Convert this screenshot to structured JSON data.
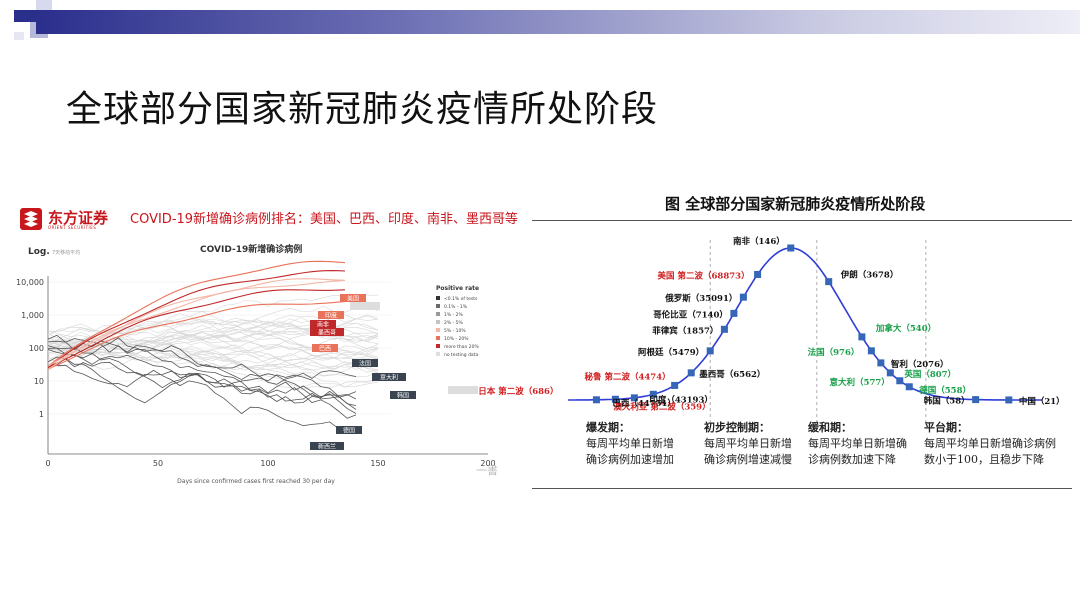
{
  "slide": {
    "title": "全球部分国家新冠肺炎疫情所处阶段"
  },
  "left_panel": {
    "logo_cn": "东方证券",
    "logo_en": "ORIENT SECURITIES",
    "headline": "COVID-19新增确诊病例排名：美国、巴西、印度、南非、墨西哥等",
    "watermark": "一書"
  },
  "chart_data": [
    {
      "type": "line",
      "title": "COVID-19新增确诊病例",
      "y_scale": "log",
      "ylabel": "Log.",
      "ylabel_note": "7天移动平均",
      "y_ticks": [
        "10,000",
        "1,000",
        "100",
        "10",
        "1"
      ],
      "xlabel": "Days since confirmed cases first reached 30 per day",
      "x_ticks": [
        "0",
        "50",
        "100",
        "150",
        "200"
      ],
      "xlim": [
        0,
        200
      ],
      "legend_title": "Positive rate",
      "legend": [
        "<0.1% of tests",
        "0.1% - 1%",
        "1% - 2%",
        "2% - 5%",
        "5% - 10%",
        "10% - 20%",
        "more than 20%",
        "no testing data"
      ],
      "legend_colors": [
        "#333333",
        "#6b6b6b",
        "#9a9a9a",
        "#c4c4c4",
        "#f4b6a6",
        "#e8735a",
        "#c0282a",
        "#dddddd"
      ],
      "country_labels": [
        {
          "text": "美国",
          "color": "#e8735a"
        },
        {
          "text": "",
          "color": "#dddddd"
        },
        {
          "text": "印度",
          "color": "#e8735a"
        },
        {
          "text": "南非",
          "color": "#c0282a"
        },
        {
          "text": "墨西哥",
          "color": "#c0282a"
        },
        {
          "text": "巴西",
          "color": "#e8735a"
        },
        {
          "text": "法国",
          "color": "#3a4450"
        },
        {
          "text": "意大利",
          "color": "#3a4450"
        },
        {
          "text": "韩国",
          "color": "#3a4450"
        },
        {
          "text": "",
          "color": "#dddddd"
        },
        {
          "text": "德国",
          "color": "#3a4450"
        },
        {
          "text": "新西兰",
          "color": "#3a4450"
        }
      ]
    },
    {
      "type": "line",
      "title": "图  全球部分国家新冠肺炎疫情所处阶段",
      "series": [
        {
          "name": "",
          "points": [
            {
              "label": "日本 第二波（686）",
              "color": "#d21f1f"
            },
            {
              "label": "澳大利亚 第二波（359）",
              "color": "#d21f1f"
            },
            {
              "label": "巴西（44751）",
              "color": "#111111"
            },
            {
              "label": "印度（43193）",
              "color": "#111111"
            },
            {
              "label": "秘鲁 第二波（4474）",
              "color": "#d21f1f"
            },
            {
              "label": "墨西哥（6562）",
              "color": "#111111"
            },
            {
              "label": "阿根廷（5479）",
              "color": "#111111"
            },
            {
              "label": "菲律宾（1857）",
              "color": "#111111"
            },
            {
              "label": "哥伦比亚（7140）",
              "color": "#111111"
            },
            {
              "label": "俄罗斯（35091）",
              "color": "#111111"
            },
            {
              "label": "美国 第二波（68873）",
              "color": "#d21f1f"
            },
            {
              "label": "南非（146）",
              "color": "#111111"
            },
            {
              "label": "伊朗（3678）",
              "color": "#111111"
            },
            {
              "label": "加拿大（540）",
              "color": "#17a04a"
            },
            {
              "label": "智利（2076）",
              "color": "#111111"
            },
            {
              "label": "法国（976）",
              "color": "#17a04a"
            },
            {
              "label": "英国（807）",
              "color": "#17a04a"
            },
            {
              "label": "意大利（577）",
              "color": "#17a04a"
            },
            {
              "label": "德国（558）",
              "color": "#17a04a"
            },
            {
              "label": "韩国（58）",
              "color": "#111111"
            },
            {
              "label": "中国（21）",
              "color": "#111111"
            }
          ]
        }
      ],
      "phases": [
        {
          "name": "爆发期：",
          "desc1": "每周平均单日新增",
          "desc2": "确诊病例加速增加"
        },
        {
          "name": "初步控制期：",
          "desc1": "每周平均单日新增",
          "desc2": "确诊病例增速减慢"
        },
        {
          "name": "缓和期：",
          "desc1": "每周平均单日新增确",
          "desc2": "诊病例数加速下降"
        },
        {
          "name": "平台期：",
          "desc1": "每周平均单日新增确诊病例",
          "desc2": "数小于100，且稳步下降"
        }
      ]
    }
  ]
}
